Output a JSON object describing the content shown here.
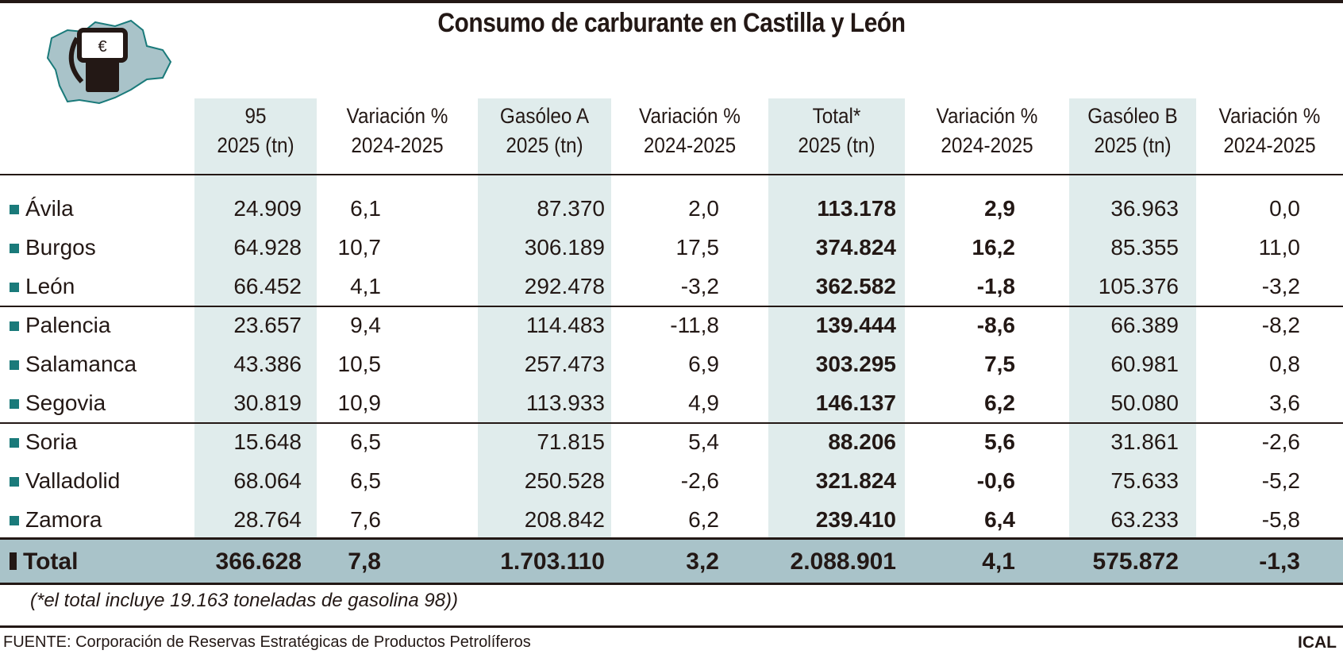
{
  "title": "Consumo de carburante en Castilla y León",
  "logo": {
    "symbol": "€",
    "icon": "fuel-pump-map-icon",
    "map_color": "#a9c3c9",
    "outline_color": "#1a7a7a"
  },
  "columns": [
    {
      "line1": "95",
      "line2": "2025 (tn)"
    },
    {
      "line1": "Variación %",
      "line2": "2024-2025"
    },
    {
      "line1": "Gasóleo A",
      "line2": "2025 (tn)"
    },
    {
      "line1": "Variación %",
      "line2": "2024-2025"
    },
    {
      "line1": "Total*",
      "line2": "2025 (tn)"
    },
    {
      "line1": "Variación %",
      "line2": "2024-2025"
    },
    {
      "line1": "Gasóleo B",
      "line2": "2025 (tn)"
    },
    {
      "line1": "Variación %",
      "line2": "2024-2025"
    }
  ],
  "rows": [
    {
      "name": "Ávila",
      "values": [
        "24.909",
        "6,1",
        "87.370",
        "2,0",
        "113.178",
        "2,9",
        "36.963",
        "0,0"
      ]
    },
    {
      "name": "Burgos",
      "values": [
        "64.928",
        "10,7",
        "306.189",
        "17,5",
        "374.824",
        "16,2",
        "85.355",
        "11,0"
      ]
    },
    {
      "name": "León",
      "values": [
        "66.452",
        "4,1",
        "292.478",
        "-3,2",
        "362.582",
        "-1,8",
        "105.376",
        "-3,2"
      ]
    },
    {
      "name": "Palencia",
      "values": [
        "23.657",
        "9,4",
        "114.483",
        "-11,8",
        "139.444",
        "-8,6",
        "66.389",
        "-8,2"
      ]
    },
    {
      "name": "Salamanca",
      "values": [
        "43.386",
        "10,5",
        "257.473",
        "6,9",
        "303.295",
        "7,5",
        "60.981",
        "0,8"
      ]
    },
    {
      "name": "Segovia",
      "values": [
        "30.819",
        "10,9",
        "113.933",
        "4,9",
        "146.137",
        "6,2",
        "50.080",
        "3,6"
      ]
    },
    {
      "name": "Soria",
      "values": [
        "15.648",
        "6,5",
        "71.815",
        "5,4",
        "88.206",
        "5,6",
        "31.861",
        "-2,6"
      ]
    },
    {
      "name": "Valladolid",
      "values": [
        "68.064",
        "6,5",
        "250.528",
        "-2,6",
        "321.824",
        "-0,6",
        "75.633",
        "-5,2"
      ]
    },
    {
      "name": "Zamora",
      "values": [
        "28.764",
        "7,6",
        "208.842",
        "6,2",
        "239.410",
        "6,4",
        "63.233",
        "-5,8"
      ]
    }
  ],
  "total": {
    "name": "Total",
    "values": [
      "366.628",
      "7,8",
      "1.703.110",
      "3,2",
      "2.088.901",
      "4,1",
      "575.872",
      "-1,3"
    ]
  },
  "footnote": "(*el total incluye 19.163 toneladas de gasolina 98))",
  "source": "FUENTE: Corporación de Reservas Estratégicas de Productos Petrolíferos",
  "credit": "ICAL",
  "colors": {
    "shade": "#e0ecec",
    "total_row": "#a9c3c9",
    "bullet": "#1a7a7a"
  }
}
